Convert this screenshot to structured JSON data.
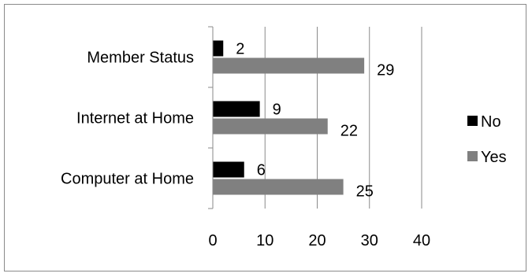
{
  "chart_data": {
    "type": "bar",
    "orientation": "horizontal",
    "categories": [
      "Member Status",
      "Internet at Home",
      "Computer at Home"
    ],
    "series": [
      {
        "name": "No",
        "values": [
          2,
          9,
          6
        ],
        "color": "#000000"
      },
      {
        "name": "Yes",
        "values": [
          29,
          22,
          25
        ],
        "color": "#808080"
      }
    ],
    "xlim": [
      0,
      40
    ],
    "x_ticks": [
      0,
      10,
      20,
      30,
      40
    ],
    "grid": "vertical",
    "legend_position": "right",
    "title": "",
    "xlabel": "",
    "ylabel": ""
  }
}
